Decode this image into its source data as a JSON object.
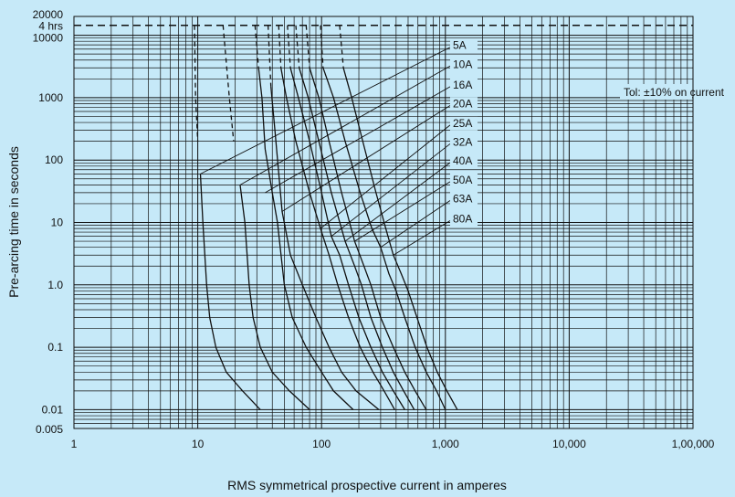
{
  "chart_data": {
    "type": "line",
    "title": "",
    "xlabel": "RMS symmetrical prospective current in amperes",
    "ylabel": "Pre-arcing time in seconds",
    "x_scale": "log",
    "y_scale": "log",
    "xlim": [
      1,
      100000
    ],
    "ylim": [
      0.005,
      20000
    ],
    "x_ticks": [
      {
        "value": 1,
        "label": "1"
      },
      {
        "value": 10,
        "label": "10"
      },
      {
        "value": 100,
        "label": "100"
      },
      {
        "value": 1000,
        "label": "1,000"
      },
      {
        "value": 10000,
        "label": "10,000"
      },
      {
        "value": 100000,
        "label": "1,00,000"
      }
    ],
    "y_ticks": [
      {
        "value": 20000,
        "label": "20000"
      },
      {
        "value": 14400,
        "label": "4 hrs"
      },
      {
        "value": 10000,
        "label": "10000"
      },
      {
        "value": 1000,
        "label": "1000"
      },
      {
        "value": 100,
        "label": "100"
      },
      {
        "value": 10,
        "label": "10"
      },
      {
        "value": 1,
        "label": "1.0"
      },
      {
        "value": 0.1,
        "label": "0.1"
      },
      {
        "value": 0.01,
        "label": "0.01"
      },
      {
        "value": 0.005,
        "label": "0.005"
      }
    ],
    "four_hour_line": 14400,
    "annotation": "Tol: ±10% on current",
    "grid": true,
    "series": [
      {
        "name": "5A",
        "dashed_until": 100,
        "label_y": 6000,
        "leader_to": {
          "x": 10.5,
          "y": 60
        },
        "points": [
          [
            9.4,
            14400
          ],
          [
            9.6,
            1000
          ],
          [
            10,
            200
          ],
          [
            10.5,
            60
          ],
          [
            11,
            10
          ],
          [
            11.8,
            1
          ],
          [
            12.5,
            0.3
          ],
          [
            14,
            0.1
          ],
          [
            17,
            0.04
          ],
          [
            23,
            0.02
          ],
          [
            32,
            0.01
          ]
        ]
      },
      {
        "name": "10A",
        "dashed_until": 100,
        "label_y": 3000,
        "leader_to": {
          "x": 22,
          "y": 40
        },
        "points": [
          [
            16,
            14400
          ],
          [
            18,
            1000
          ],
          [
            19.5,
            200
          ],
          [
            22,
            40
          ],
          [
            24,
            10
          ],
          [
            26,
            1
          ],
          [
            28,
            0.3
          ],
          [
            32,
            0.1
          ],
          [
            40,
            0.04
          ],
          [
            55,
            0.02
          ],
          [
            80,
            0.01
          ]
        ]
      },
      {
        "name": "16A",
        "dashed_until": 3000,
        "label_y": 1400,
        "leader_to": {
          "x": 35,
          "y": 30
        },
        "points": [
          [
            29,
            14400
          ],
          [
            31,
            3000
          ],
          [
            33,
            1000
          ],
          [
            35,
            150
          ],
          [
            40,
            30
          ],
          [
            44,
            10
          ],
          [
            50,
            1
          ],
          [
            58,
            0.3
          ],
          [
            75,
            0.1
          ],
          [
            100,
            0.04
          ],
          [
            125,
            0.02
          ],
          [
            180,
            0.01
          ]
        ]
      },
      {
        "name": "20A",
        "dashed_until": 1500,
        "label_y": 700,
        "leader_to": {
          "x": 48,
          "y": 15
        },
        "points": [
          [
            37,
            14400
          ],
          [
            39,
            1500
          ],
          [
            42,
            300
          ],
          [
            48,
            15
          ],
          [
            56,
            3
          ],
          [
            70,
            1
          ],
          [
            90,
            0.3
          ],
          [
            115,
            0.1
          ],
          [
            145,
            0.04
          ],
          [
            190,
            0.02
          ],
          [
            290,
            0.01
          ]
        ]
      },
      {
        "name": "25A",
        "dashed_until": 3000,
        "label_y": 340,
        "leader_to": {
          "x": 98,
          "y": 8
        },
        "points": [
          [
            45,
            14400
          ],
          [
            47,
            3000
          ],
          [
            52,
            1000
          ],
          [
            62,
            200
          ],
          [
            80,
            30
          ],
          [
            98,
            8
          ],
          [
            115,
            3
          ],
          [
            135,
            1
          ],
          [
            165,
            0.3
          ],
          [
            205,
            0.1
          ],
          [
            260,
            0.04
          ],
          [
            320,
            0.02
          ],
          [
            390,
            0.01
          ]
        ]
      },
      {
        "name": "32A",
        "dashed_until": 3000,
        "label_y": 170,
        "leader_to": {
          "x": 120,
          "y": 6
        },
        "points": [
          [
            53,
            14400
          ],
          [
            56,
            3000
          ],
          [
            65,
            1000
          ],
          [
            80,
            200
          ],
          [
            100,
            30
          ],
          [
            120,
            6
          ],
          [
            140,
            3
          ],
          [
            165,
            1
          ],
          [
            200,
            0.3
          ],
          [
            250,
            0.1
          ],
          [
            310,
            0.04
          ],
          [
            380,
            0.02
          ],
          [
            470,
            0.01
          ]
        ]
      },
      {
        "name": "40A",
        "dashed_until": 3000,
        "label_y": 85,
        "leader_to": {
          "x": 155,
          "y": 5
        },
        "points": [
          [
            62,
            14400
          ],
          [
            66,
            3000
          ],
          [
            78,
            1000
          ],
          [
            95,
            200
          ],
          [
            120,
            30
          ],
          [
            155,
            5
          ],
          [
            185,
            2
          ],
          [
            210,
            1
          ],
          [
            250,
            0.3
          ],
          [
            310,
            0.1
          ],
          [
            380,
            0.04
          ],
          [
            460,
            0.02
          ],
          [
            560,
            0.01
          ]
        ]
      },
      {
        "name": "50A",
        "dashed_until": 3000,
        "label_y": 42,
        "leader_to": {
          "x": 185,
          "y": 5
        },
        "points": [
          [
            75,
            14400
          ],
          [
            80,
            3000
          ],
          [
            95,
            1000
          ],
          [
            115,
            200
          ],
          [
            145,
            30
          ],
          [
            185,
            5
          ],
          [
            220,
            2
          ],
          [
            250,
            1
          ],
          [
            300,
            0.3
          ],
          [
            380,
            0.1
          ],
          [
            470,
            0.04
          ],
          [
            570,
            0.02
          ],
          [
            700,
            0.01
          ]
        ]
      },
      {
        "name": "63A",
        "dashed_until": 3000,
        "label_y": 21,
        "leader_to": {
          "x": 300,
          "y": 4
        },
        "points": [
          [
            98,
            14400
          ],
          [
            103,
            3000
          ],
          [
            125,
            1000
          ],
          [
            155,
            200
          ],
          [
            205,
            30
          ],
          [
            255,
            8
          ],
          [
            300,
            4
          ],
          [
            350,
            1.5
          ],
          [
            400,
            0.8
          ],
          [
            470,
            0.3
          ],
          [
            570,
            0.1
          ],
          [
            700,
            0.04
          ],
          [
            850,
            0.02
          ],
          [
            1000,
            0.01
          ]
        ]
      },
      {
        "name": "80A",
        "dashed_until": 3000,
        "label_y": 10,
        "leader_to": {
          "x": 380,
          "y": 3
        },
        "points": [
          [
            140,
            14400
          ],
          [
            150,
            3000
          ],
          [
            175,
            1000
          ],
          [
            215,
            200
          ],
          [
            275,
            30
          ],
          [
            330,
            8
          ],
          [
            380,
            3
          ],
          [
            440,
            1.5
          ],
          [
            500,
            0.8
          ],
          [
            590,
            0.3
          ],
          [
            710,
            0.1
          ],
          [
            860,
            0.04
          ],
          [
            1030,
            0.02
          ],
          [
            1250,
            0.01
          ]
        ]
      }
    ]
  }
}
